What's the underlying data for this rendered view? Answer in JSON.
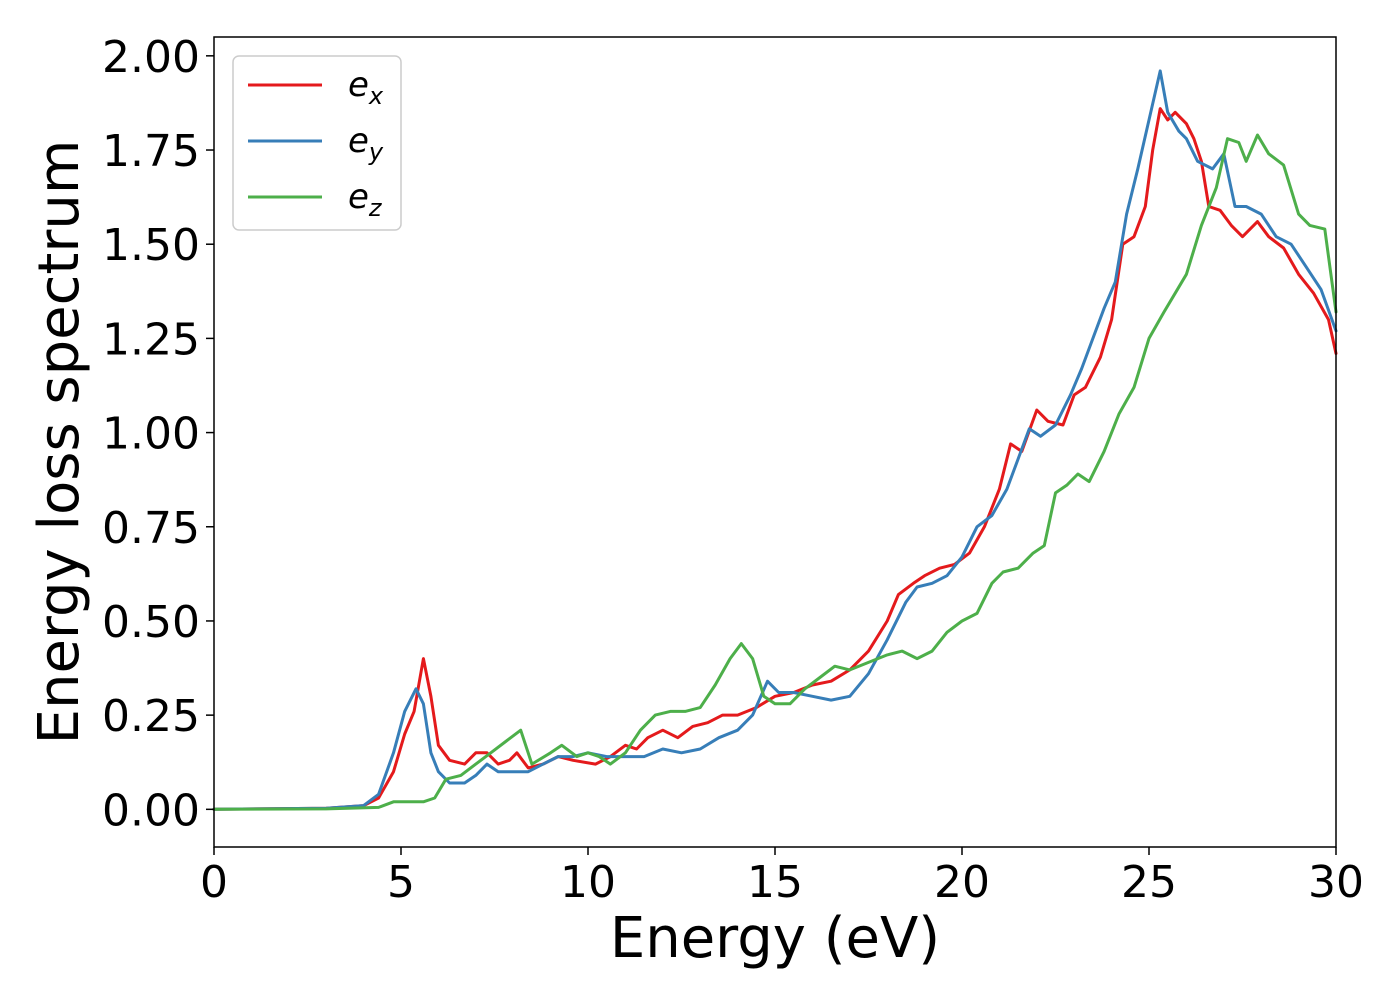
{
  "chart_data": {
    "type": "line",
    "xlabel": "Energy (eV)",
    "ylabel": "Energy loss spectrum",
    "xlim": [
      0,
      30
    ],
    "ylim": [
      -0.1,
      2.05
    ],
    "x_ticks": [
      "0",
      "5",
      "10",
      "15",
      "20",
      "25",
      "30"
    ],
    "y_ticks": [
      "0.00",
      "0.25",
      "0.50",
      "0.75",
      "1.00",
      "1.25",
      "1.50",
      "1.75",
      "2.00"
    ],
    "grid": false,
    "legend_position": "top-left",
    "series": [
      {
        "name": "e",
        "subscript": "x",
        "color": "#e41a1c",
        "points": [
          [
            0,
            0
          ],
          [
            3,
            0.003
          ],
          [
            4,
            0.01
          ],
          [
            4.4,
            0.03
          ],
          [
            4.8,
            0.1
          ],
          [
            5.1,
            0.2
          ],
          [
            5.35,
            0.26
          ],
          [
            5.6,
            0.4
          ],
          [
            5.8,
            0.3
          ],
          [
            6.0,
            0.17
          ],
          [
            6.3,
            0.13
          ],
          [
            6.7,
            0.12
          ],
          [
            7.0,
            0.15
          ],
          [
            7.3,
            0.15
          ],
          [
            7.6,
            0.12
          ],
          [
            7.9,
            0.13
          ],
          [
            8.1,
            0.15
          ],
          [
            8.4,
            0.11
          ],
          [
            8.8,
            0.12
          ],
          [
            9.2,
            0.14
          ],
          [
            9.6,
            0.13
          ],
          [
            10.2,
            0.12
          ],
          [
            10.6,
            0.14
          ],
          [
            11.0,
            0.17
          ],
          [
            11.3,
            0.16
          ],
          [
            11.6,
            0.19
          ],
          [
            12.0,
            0.21
          ],
          [
            12.4,
            0.19
          ],
          [
            12.8,
            0.22
          ],
          [
            13.2,
            0.23
          ],
          [
            13.6,
            0.25
          ],
          [
            14.0,
            0.25
          ],
          [
            14.5,
            0.27
          ],
          [
            15.0,
            0.3
          ],
          [
            15.5,
            0.31
          ],
          [
            16.0,
            0.33
          ],
          [
            16.5,
            0.34
          ],
          [
            17.0,
            0.37
          ],
          [
            17.5,
            0.42
          ],
          [
            18.0,
            0.5
          ],
          [
            18.3,
            0.57
          ],
          [
            18.7,
            0.6
          ],
          [
            19.0,
            0.62
          ],
          [
            19.4,
            0.64
          ],
          [
            19.8,
            0.65
          ],
          [
            20.2,
            0.68
          ],
          [
            20.6,
            0.75
          ],
          [
            21.0,
            0.85
          ],
          [
            21.3,
            0.97
          ],
          [
            21.6,
            0.95
          ],
          [
            22.0,
            1.06
          ],
          [
            22.3,
            1.03
          ],
          [
            22.7,
            1.02
          ],
          [
            23.0,
            1.1
          ],
          [
            23.3,
            1.12
          ],
          [
            23.7,
            1.2
          ],
          [
            24.0,
            1.3
          ],
          [
            24.3,
            1.5
          ],
          [
            24.6,
            1.52
          ],
          [
            24.9,
            1.6
          ],
          [
            25.1,
            1.75
          ],
          [
            25.3,
            1.86
          ],
          [
            25.5,
            1.83
          ],
          [
            25.7,
            1.85
          ],
          [
            26.0,
            1.82
          ],
          [
            26.2,
            1.78
          ],
          [
            26.4,
            1.72
          ],
          [
            26.6,
            1.6
          ],
          [
            26.9,
            1.59
          ],
          [
            27.2,
            1.55
          ],
          [
            27.5,
            1.52
          ],
          [
            27.9,
            1.56
          ],
          [
            28.2,
            1.52
          ],
          [
            28.6,
            1.49
          ],
          [
            29.0,
            1.42
          ],
          [
            29.4,
            1.37
          ],
          [
            29.8,
            1.3
          ],
          [
            30,
            1.21
          ]
        ]
      },
      {
        "name": "e",
        "subscript": "y",
        "color": "#377eb8",
        "points": [
          [
            0,
            0
          ],
          [
            3,
            0.003
          ],
          [
            4,
            0.01
          ],
          [
            4.4,
            0.04
          ],
          [
            4.8,
            0.15
          ],
          [
            5.1,
            0.26
          ],
          [
            5.4,
            0.32
          ],
          [
            5.6,
            0.28
          ],
          [
            5.8,
            0.15
          ],
          [
            6.0,
            0.1
          ],
          [
            6.3,
            0.07
          ],
          [
            6.7,
            0.07
          ],
          [
            7.0,
            0.09
          ],
          [
            7.3,
            0.12
          ],
          [
            7.6,
            0.1
          ],
          [
            8.0,
            0.1
          ],
          [
            8.4,
            0.1
          ],
          [
            8.8,
            0.12
          ],
          [
            9.2,
            0.14
          ],
          [
            9.6,
            0.14
          ],
          [
            10.0,
            0.15
          ],
          [
            10.5,
            0.14
          ],
          [
            11.0,
            0.14
          ],
          [
            11.5,
            0.14
          ],
          [
            12.0,
            0.16
          ],
          [
            12.5,
            0.15
          ],
          [
            13.0,
            0.16
          ],
          [
            13.5,
            0.19
          ],
          [
            14.0,
            0.21
          ],
          [
            14.4,
            0.25
          ],
          [
            14.8,
            0.34
          ],
          [
            15.1,
            0.31
          ],
          [
            15.5,
            0.31
          ],
          [
            16.0,
            0.3
          ],
          [
            16.5,
            0.29
          ],
          [
            17.0,
            0.3
          ],
          [
            17.5,
            0.36
          ],
          [
            18.0,
            0.45
          ],
          [
            18.5,
            0.55
          ],
          [
            18.8,
            0.59
          ],
          [
            19.2,
            0.6
          ],
          [
            19.6,
            0.62
          ],
          [
            20.0,
            0.67
          ],
          [
            20.4,
            0.75
          ],
          [
            20.8,
            0.78
          ],
          [
            21.2,
            0.85
          ],
          [
            21.5,
            0.93
          ],
          [
            21.8,
            1.01
          ],
          [
            22.1,
            0.99
          ],
          [
            22.5,
            1.02
          ],
          [
            22.9,
            1.1
          ],
          [
            23.2,
            1.17
          ],
          [
            23.5,
            1.25
          ],
          [
            23.8,
            1.33
          ],
          [
            24.1,
            1.4
          ],
          [
            24.4,
            1.58
          ],
          [
            24.7,
            1.7
          ],
          [
            25.0,
            1.83
          ],
          [
            25.3,
            1.96
          ],
          [
            25.5,
            1.85
          ],
          [
            25.8,
            1.8
          ],
          [
            26.0,
            1.78
          ],
          [
            26.3,
            1.72
          ],
          [
            26.7,
            1.7
          ],
          [
            27.0,
            1.74
          ],
          [
            27.3,
            1.6
          ],
          [
            27.6,
            1.6
          ],
          [
            28.0,
            1.58
          ],
          [
            28.4,
            1.52
          ],
          [
            28.8,
            1.5
          ],
          [
            29.2,
            1.44
          ],
          [
            29.6,
            1.38
          ],
          [
            30,
            1.27
          ]
        ]
      },
      {
        "name": "e",
        "subscript": "z",
        "color": "#4daf4a",
        "points": [
          [
            0,
            0
          ],
          [
            3,
            0.001
          ],
          [
            4.4,
            0.005
          ],
          [
            4.8,
            0.02
          ],
          [
            5.2,
            0.02
          ],
          [
            5.6,
            0.02
          ],
          [
            5.9,
            0.03
          ],
          [
            6.2,
            0.08
          ],
          [
            6.6,
            0.09
          ],
          [
            7.0,
            0.12
          ],
          [
            7.4,
            0.15
          ],
          [
            7.8,
            0.18
          ],
          [
            8.2,
            0.21
          ],
          [
            8.5,
            0.12
          ],
          [
            9.0,
            0.15
          ],
          [
            9.3,
            0.17
          ],
          [
            9.7,
            0.14
          ],
          [
            10.0,
            0.15
          ],
          [
            10.3,
            0.14
          ],
          [
            10.6,
            0.12
          ],
          [
            11.0,
            0.15
          ],
          [
            11.4,
            0.21
          ],
          [
            11.8,
            0.25
          ],
          [
            12.2,
            0.26
          ],
          [
            12.6,
            0.26
          ],
          [
            13.0,
            0.27
          ],
          [
            13.4,
            0.33
          ],
          [
            13.8,
            0.4
          ],
          [
            14.1,
            0.44
          ],
          [
            14.4,
            0.4
          ],
          [
            14.7,
            0.3
          ],
          [
            15.0,
            0.28
          ],
          [
            15.4,
            0.28
          ],
          [
            15.8,
            0.32
          ],
          [
            16.2,
            0.35
          ],
          [
            16.6,
            0.38
          ],
          [
            17.0,
            0.37
          ],
          [
            17.5,
            0.39
          ],
          [
            18.0,
            0.41
          ],
          [
            18.4,
            0.42
          ],
          [
            18.8,
            0.4
          ],
          [
            19.2,
            0.42
          ],
          [
            19.6,
            0.47
          ],
          [
            20.0,
            0.5
          ],
          [
            20.4,
            0.52
          ],
          [
            20.8,
            0.6
          ],
          [
            21.1,
            0.63
          ],
          [
            21.5,
            0.64
          ],
          [
            21.9,
            0.68
          ],
          [
            22.2,
            0.7
          ],
          [
            22.5,
            0.84
          ],
          [
            22.8,
            0.86
          ],
          [
            23.1,
            0.89
          ],
          [
            23.4,
            0.87
          ],
          [
            23.8,
            0.95
          ],
          [
            24.2,
            1.05
          ],
          [
            24.6,
            1.12
          ],
          [
            25.0,
            1.25
          ],
          [
            25.4,
            1.32
          ],
          [
            25.7,
            1.37
          ],
          [
            26.0,
            1.42
          ],
          [
            26.4,
            1.55
          ],
          [
            26.8,
            1.65
          ],
          [
            27.1,
            1.78
          ],
          [
            27.4,
            1.77
          ],
          [
            27.6,
            1.72
          ],
          [
            27.9,
            1.79
          ],
          [
            28.2,
            1.74
          ],
          [
            28.6,
            1.71
          ],
          [
            29.0,
            1.58
          ],
          [
            29.3,
            1.55
          ],
          [
            29.7,
            1.54
          ],
          [
            30,
            1.32
          ]
        ]
      }
    ]
  }
}
